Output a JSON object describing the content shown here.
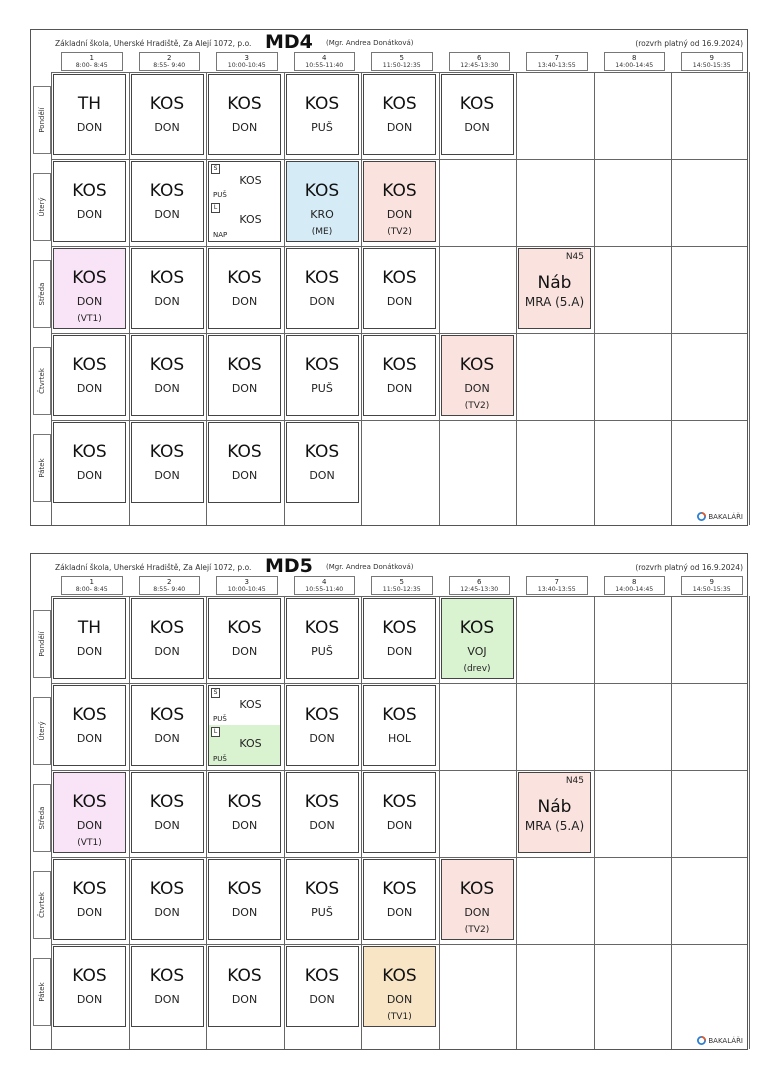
{
  "school": "Základní škola, Uherské Hradiště, Za Alejí 1072, p.o.",
  "teacher": "(Mgr. Andrea Donátková)",
  "valid_from": "(rozvrh platný od 16.9.2024)",
  "brand": "BAKALÁŘI",
  "periods": [
    {
      "n": "1",
      "t": "8:00- 8:45"
    },
    {
      "n": "2",
      "t": "8:55- 9:40"
    },
    {
      "n": "3",
      "t": "10:00-10:45"
    },
    {
      "n": "4",
      "t": "10:55-11:40"
    },
    {
      "n": "5",
      "t": "11:50-12:35"
    },
    {
      "n": "6",
      "t": "12:45-13:30"
    },
    {
      "n": "7",
      "t": "13:40-13:55"
    },
    {
      "n": "8",
      "t": "14:00-14:45"
    },
    {
      "n": "9",
      "t": "14:50-15:35"
    }
  ],
  "days": [
    "Pondělí",
    "Úterý",
    "Středa",
    "Čtvrtek",
    "Pátek"
  ],
  "schedules": [
    {
      "class": "MD4",
      "cells": [
        {
          "d": 0,
          "p": 0,
          "subj": "TH",
          "tch": "DON"
        },
        {
          "d": 0,
          "p": 1,
          "subj": "KOS",
          "tch": "DON"
        },
        {
          "d": 0,
          "p": 2,
          "subj": "KOS",
          "tch": "DON"
        },
        {
          "d": 0,
          "p": 3,
          "subj": "KOS",
          "tch": "PUŠ"
        },
        {
          "d": 0,
          "p": 4,
          "subj": "KOS",
          "tch": "DON"
        },
        {
          "d": 0,
          "p": 5,
          "subj": "KOS",
          "tch": "DON"
        },
        {
          "d": 1,
          "p": 0,
          "subj": "KOS",
          "tch": "DON"
        },
        {
          "d": 1,
          "p": 1,
          "subj": "KOS",
          "tch": "DON"
        },
        {
          "d": 1,
          "p": 2,
          "split": [
            {
              "g": "S",
              "subj": "KOS",
              "tch": "PUŠ",
              "bg": "#ffffff"
            },
            {
              "g": "L",
              "subj": "KOS",
              "tch": "NAP",
              "bg": "#ffffff"
            }
          ]
        },
        {
          "d": 1,
          "p": 3,
          "subj": "KOS",
          "tch": "KRO",
          "room": "(ME)",
          "bg": "#d5ebf6"
        },
        {
          "d": 1,
          "p": 4,
          "subj": "KOS",
          "tch": "DON",
          "room": "(TV2)",
          "bg": "#fae3df"
        },
        {
          "d": 2,
          "p": 0,
          "subj": "KOS",
          "tch": "DON",
          "room": "(VT1)",
          "bg": "#f9e3f6"
        },
        {
          "d": 2,
          "p": 1,
          "subj": "KOS",
          "tch": "DON"
        },
        {
          "d": 2,
          "p": 2,
          "subj": "KOS",
          "tch": "DON"
        },
        {
          "d": 2,
          "p": 3,
          "subj": "KOS",
          "tch": "DON"
        },
        {
          "d": 2,
          "p": 4,
          "subj": "KOS",
          "tch": "DON"
        },
        {
          "d": 2,
          "p": 6,
          "subj": "Náb",
          "tch": "MRA (5.A)",
          "note": "N45",
          "bg": "#fae3df",
          "big": true
        },
        {
          "d": 3,
          "p": 0,
          "subj": "KOS",
          "tch": "DON"
        },
        {
          "d": 3,
          "p": 1,
          "subj": "KOS",
          "tch": "DON"
        },
        {
          "d": 3,
          "p": 2,
          "subj": "KOS",
          "tch": "DON"
        },
        {
          "d": 3,
          "p": 3,
          "subj": "KOS",
          "tch": "PUŠ"
        },
        {
          "d": 3,
          "p": 4,
          "subj": "KOS",
          "tch": "DON"
        },
        {
          "d": 3,
          "p": 5,
          "subj": "KOS",
          "tch": "DON",
          "room": "(TV2)",
          "bg": "#fae3df"
        },
        {
          "d": 4,
          "p": 0,
          "subj": "KOS",
          "tch": "DON"
        },
        {
          "d": 4,
          "p": 1,
          "subj": "KOS",
          "tch": "DON"
        },
        {
          "d": 4,
          "p": 2,
          "subj": "KOS",
          "tch": "DON"
        },
        {
          "d": 4,
          "p": 3,
          "subj": "KOS",
          "tch": "DON"
        }
      ]
    },
    {
      "class": "MD5",
      "cells": [
        {
          "d": 0,
          "p": 0,
          "subj": "TH",
          "tch": "DON"
        },
        {
          "d": 0,
          "p": 1,
          "subj": "KOS",
          "tch": "DON"
        },
        {
          "d": 0,
          "p": 2,
          "subj": "KOS",
          "tch": "DON"
        },
        {
          "d": 0,
          "p": 3,
          "subj": "KOS",
          "tch": "PUŠ"
        },
        {
          "d": 0,
          "p": 4,
          "subj": "KOS",
          "tch": "DON"
        },
        {
          "d": 0,
          "p": 5,
          "subj": "KOS",
          "tch": "VOJ",
          "room": "(drev)",
          "bg": "#d9f2d0"
        },
        {
          "d": 1,
          "p": 0,
          "subj": "KOS",
          "tch": "DON"
        },
        {
          "d": 1,
          "p": 1,
          "subj": "KOS",
          "tch": "DON"
        },
        {
          "d": 1,
          "p": 2,
          "split": [
            {
              "g": "S",
              "subj": "KOS",
              "tch": "PUŠ",
              "bg": "#ffffff"
            },
            {
              "g": "L",
              "subj": "KOS",
              "tch": "PUŠ",
              "bg": "#d9f2d0"
            }
          ]
        },
        {
          "d": 1,
          "p": 3,
          "subj": "KOS",
          "tch": "DON"
        },
        {
          "d": 1,
          "p": 4,
          "subj": "KOS",
          "tch": "HOL"
        },
        {
          "d": 2,
          "p": 0,
          "subj": "KOS",
          "tch": "DON",
          "room": "(VT1)",
          "bg": "#f9e3f6"
        },
        {
          "d": 2,
          "p": 1,
          "subj": "KOS",
          "tch": "DON"
        },
        {
          "d": 2,
          "p": 2,
          "subj": "KOS",
          "tch": "DON"
        },
        {
          "d": 2,
          "p": 3,
          "subj": "KOS",
          "tch": "DON"
        },
        {
          "d": 2,
          "p": 4,
          "subj": "KOS",
          "tch": "DON"
        },
        {
          "d": 2,
          "p": 6,
          "subj": "Náb",
          "tch": "MRA (5.A)",
          "note": "N45",
          "bg": "#fae3df",
          "big": true
        },
        {
          "d": 3,
          "p": 0,
          "subj": "KOS",
          "tch": "DON"
        },
        {
          "d": 3,
          "p": 1,
          "subj": "KOS",
          "tch": "DON"
        },
        {
          "d": 3,
          "p": 2,
          "subj": "KOS",
          "tch": "DON"
        },
        {
          "d": 3,
          "p": 3,
          "subj": "KOS",
          "tch": "PUŠ"
        },
        {
          "d": 3,
          "p": 4,
          "subj": "KOS",
          "tch": "DON"
        },
        {
          "d": 3,
          "p": 5,
          "subj": "KOS",
          "tch": "DON",
          "room": "(TV2)",
          "bg": "#fae3df"
        },
        {
          "d": 4,
          "p": 0,
          "subj": "KOS",
          "tch": "DON"
        },
        {
          "d": 4,
          "p": 1,
          "subj": "KOS",
          "tch": "DON"
        },
        {
          "d": 4,
          "p": 2,
          "subj": "KOS",
          "tch": "DON"
        },
        {
          "d": 4,
          "p": 3,
          "subj": "KOS",
          "tch": "DON"
        },
        {
          "d": 4,
          "p": 4,
          "subj": "KOS",
          "tch": "DON",
          "room": "(TV1)",
          "bg": "#f8e5c6"
        }
      ]
    }
  ]
}
